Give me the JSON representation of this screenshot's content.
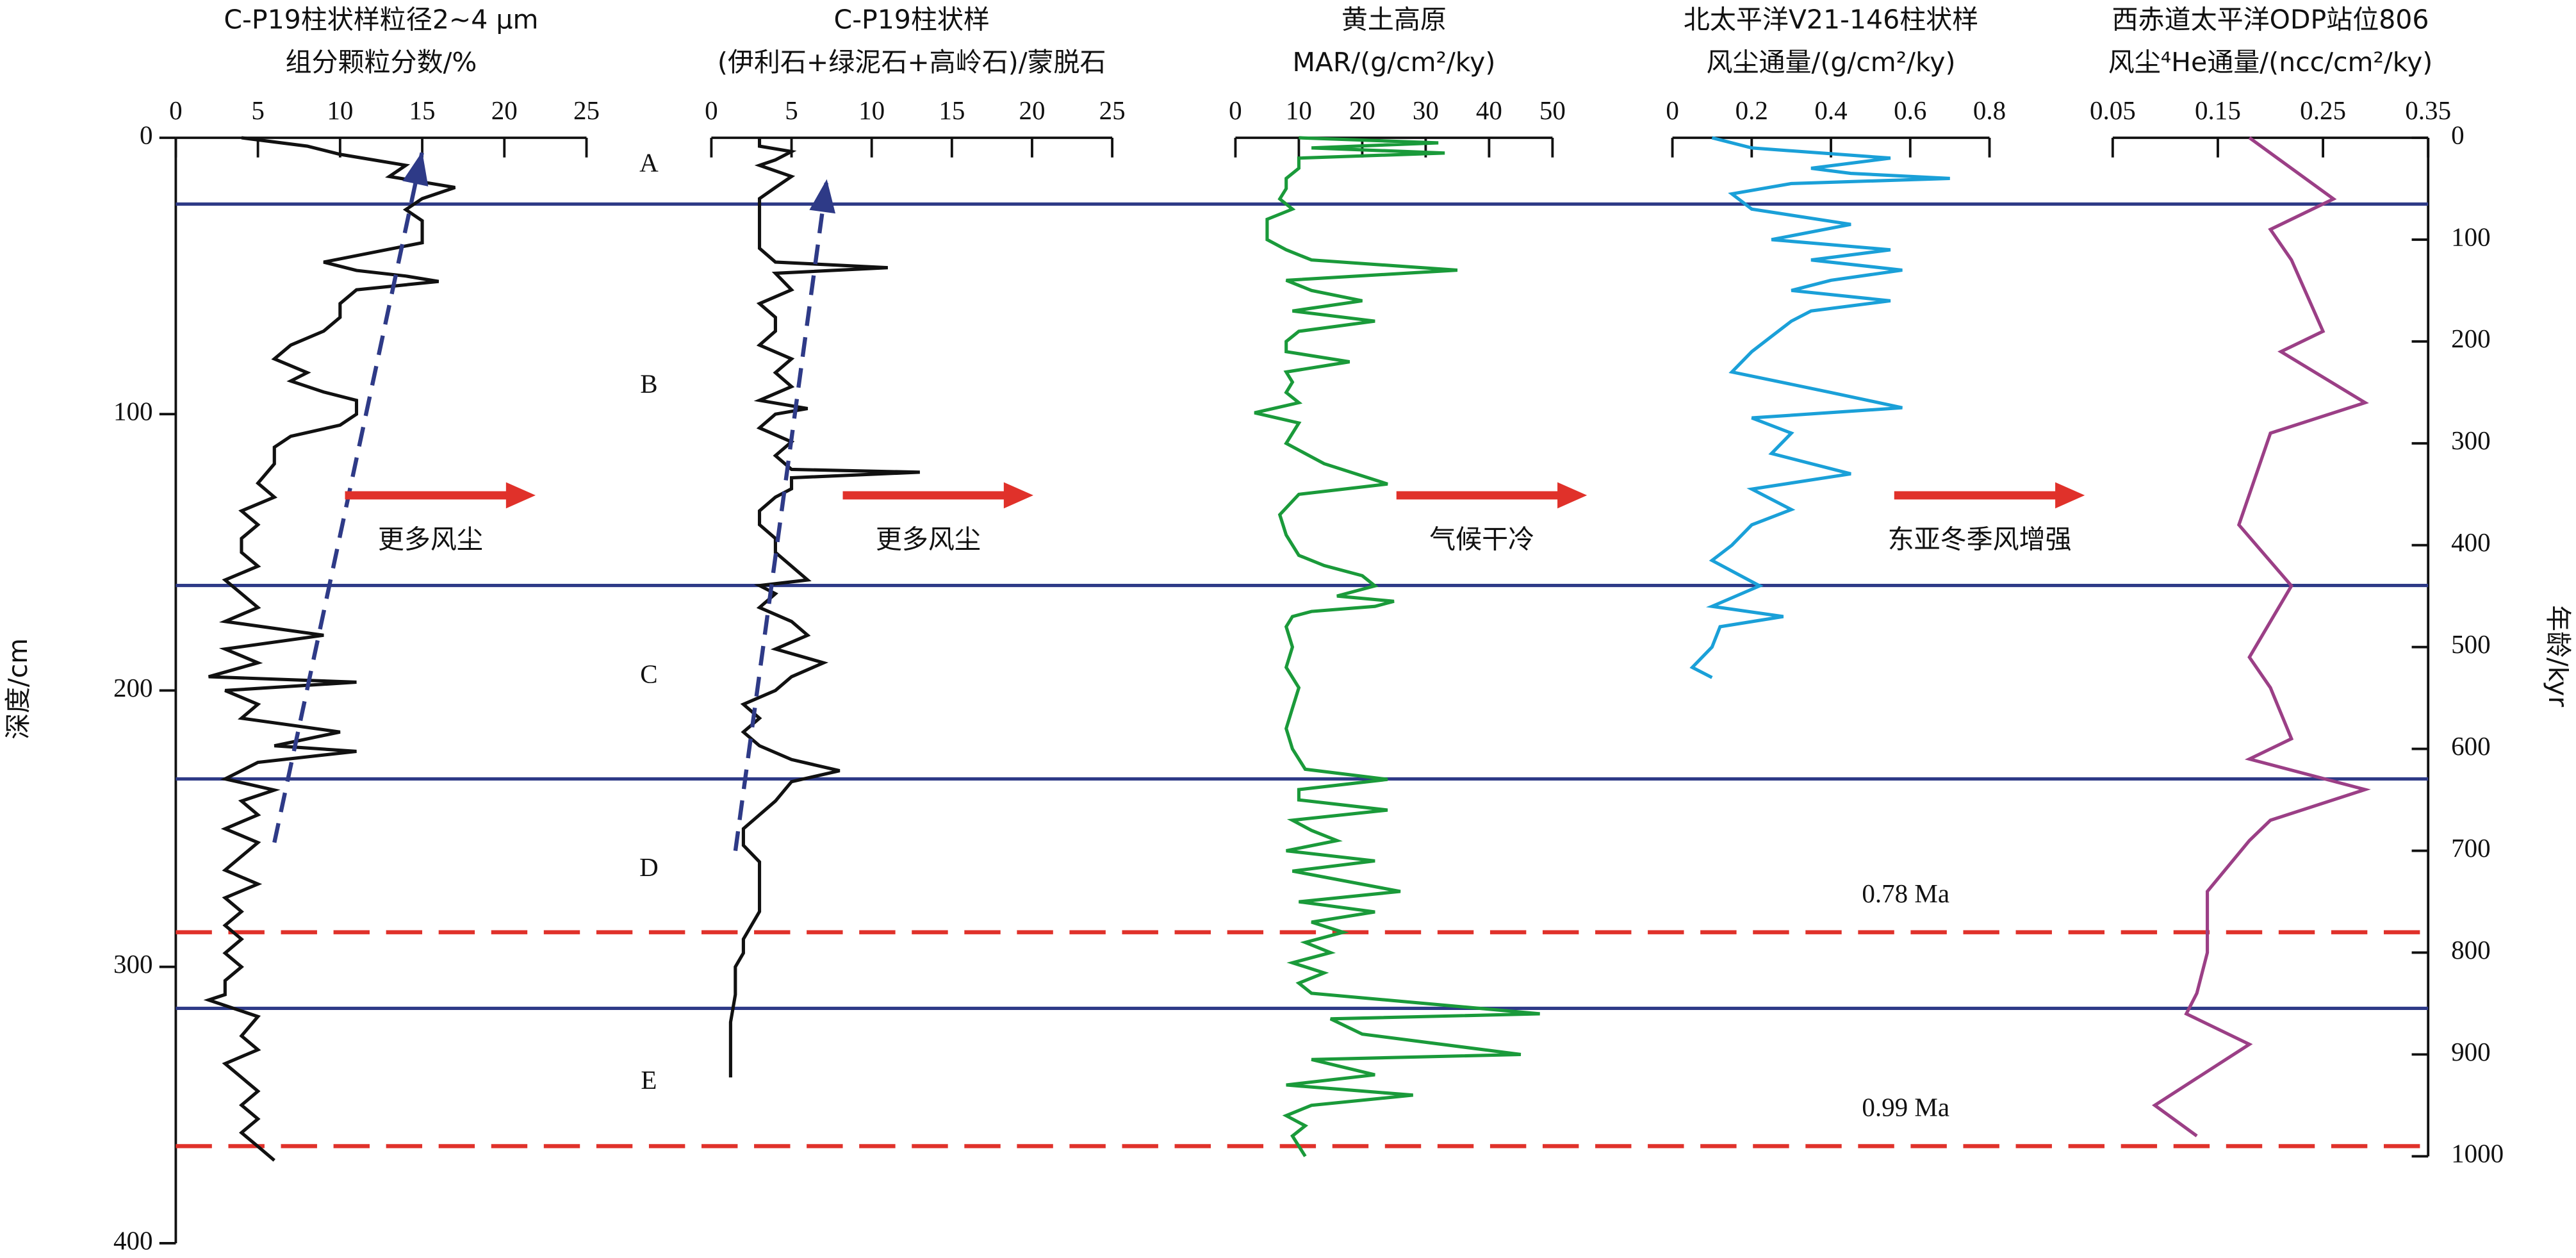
{
  "chart_data": [
    {
      "type": "line",
      "title": [
        "C-P19柱状样粒径2~4 μm",
        "组分颗粒分数/%"
      ],
      "xlim": [
        0,
        25
      ],
      "xticks": [
        0,
        5,
        10,
        15,
        20,
        25
      ],
      "ylim": [
        0,
        400
      ],
      "yticks": [
        0,
        100,
        200,
        300,
        400
      ],
      "y_label": "深度/cm",
      "annotation": "更多风尘",
      "series": [
        {
          "color": "#111111",
          "y": [
            0,
            3,
            6,
            10,
            14,
            18,
            22,
            26,
            30,
            38,
            45,
            48,
            50,
            52,
            55,
            60,
            65,
            70,
            75,
            80,
            85,
            88,
            92,
            95,
            100,
            104,
            108,
            112,
            118,
            125,
            130,
            135,
            140,
            145,
            150,
            155,
            160,
            165,
            170,
            175,
            180,
            185,
            190,
            195,
            197,
            200,
            205,
            210,
            215,
            220,
            222,
            226,
            232,
            236,
            240,
            245,
            250,
            255,
            260,
            265,
            270,
            275,
            280,
            285,
            290,
            295,
            300,
            305,
            310,
            312,
            318,
            325,
            330,
            335,
            340,
            345,
            350,
            355,
            360,
            365,
            370
          ],
          "values": [
            4,
            8,
            10,
            14,
            13,
            17,
            15,
            14,
            15,
            15,
            9,
            11,
            14,
            16,
            11,
            10,
            10,
            9,
            7,
            6,
            8,
            7,
            9,
            11,
            11,
            10,
            7,
            6,
            6,
            5,
            6,
            4,
            5,
            4,
            4,
            5,
            3,
            4,
            5,
            3,
            9,
            3,
            5,
            2,
            11,
            3,
            5,
            4,
            10,
            6,
            11,
            5,
            3,
            6,
            4,
            5,
            3,
            5,
            4,
            3,
            5,
            3,
            4,
            3,
            4,
            3,
            4,
            3,
            3,
            2,
            5,
            4,
            5,
            3,
            4,
            5,
            4,
            5,
            4,
            5,
            6
          ]
        }
      ],
      "trend": {
        "color": "#2e3a87",
        "y": [
          255,
          5
        ],
        "values": [
          6,
          15
        ]
      }
    },
    {
      "type": "line",
      "title": [
        "C-P19柱状样",
        "(伊利石+绿泥石+高岭石)/蒙脱石"
      ],
      "xlim": [
        0,
        25
      ],
      "xticks": [
        0,
        5,
        10,
        15,
        20,
        25
      ],
      "annotation": "更多风尘",
      "series": [
        {
          "color": "#111111",
          "y": [
            0,
            3,
            5,
            8,
            10,
            14,
            18,
            22,
            26,
            30,
            35,
            40,
            45,
            47,
            49,
            55,
            60,
            65,
            70,
            75,
            80,
            85,
            90,
            95,
            98,
            100,
            105,
            110,
            115,
            120,
            121,
            123,
            127,
            130,
            135,
            140,
            145,
            150,
            155,
            160,
            162,
            165,
            170,
            175,
            180,
            185,
            190,
            195,
            200,
            205,
            210,
            215,
            220,
            225,
            229,
            233,
            240,
            245,
            250,
            256,
            262,
            270,
            280,
            290,
            295,
            300,
            310,
            320,
            330,
            340
          ],
          "values": [
            3,
            3,
            5,
            4,
            3,
            5,
            4,
            3,
            3,
            3,
            3,
            3,
            4,
            11,
            4,
            5,
            3,
            4,
            4,
            3,
            5,
            4,
            5,
            3,
            6,
            4,
            3,
            5,
            4,
            5,
            13,
            5,
            5,
            4,
            3,
            3,
            4,
            4,
            5,
            6,
            3,
            4,
            3,
            5,
            6,
            4,
            7,
            5,
            4,
            2,
            3,
            2,
            3,
            5,
            8,
            5,
            4,
            3,
            2,
            2,
            3,
            3,
            3,
            2,
            2,
            1.5,
            1.5,
            1.2,
            1.2,
            1.2
          ]
        }
      ],
      "trend": {
        "color": "#2e3a87",
        "y": [
          258,
          15
        ],
        "values": [
          1.5,
          7.2
        ]
      }
    },
    {
      "type": "line",
      "title": [
        "黄土高原",
        "MAR/(g/cm²/ky)"
      ],
      "xlim": [
        0,
        50
      ],
      "xticks": [
        0,
        10,
        20,
        30,
        40,
        50
      ],
      "annotation": "气候干冷",
      "series": [
        {
          "color": "#1a9a3a",
          "axis": "y2",
          "y": [
            0,
            5,
            10,
            15,
            20,
            30,
            40,
            50,
            60,
            70,
            80,
            100,
            110,
            120,
            130,
            140,
            150,
            160,
            170,
            180,
            190,
            200,
            210,
            220,
            230,
            240,
            250,
            260,
            270,
            280,
            300,
            320,
            340,
            350,
            370,
            390,
            410,
            420,
            430,
            440,
            450,
            455,
            460,
            465,
            470,
            480,
            500,
            520,
            540,
            560,
            580,
            600,
            620,
            630,
            640,
            650,
            660,
            670,
            680,
            690,
            700,
            710,
            720,
            740,
            750,
            760,
            770,
            780,
            790,
            800,
            810,
            820,
            830,
            840,
            860,
            865,
            880,
            900,
            905,
            920,
            930,
            940,
            950,
            960,
            970,
            980,
            990,
            1000
          ],
          "values": [
            10,
            32,
            12,
            33,
            10,
            10,
            8,
            8,
            7,
            9,
            5,
            5,
            8,
            12,
            35,
            8,
            12,
            20,
            9,
            22,
            10,
            8,
            8,
            18,
            8,
            9,
            8,
            10,
            3,
            10,
            8,
            14,
            24,
            10,
            7,
            8,
            10,
            14,
            20,
            22,
            16,
            25,
            22,
            12,
            9,
            8,
            9,
            8,
            10,
            9,
            8,
            9,
            11,
            24,
            10,
            10,
            24,
            9,
            12,
            16,
            8,
            22,
            9,
            26,
            10,
            22,
            12,
            17,
            11,
            15,
            9,
            14,
            10,
            12,
            48,
            15,
            20,
            45,
            12,
            22,
            8,
            28,
            12,
            8,
            11,
            9,
            10,
            11
          ]
        }
      ]
    },
    {
      "type": "line",
      "title": [
        "北太平洋V21-146柱状样",
        "风尘通量/(g/cm²/ky)"
      ],
      "xlim": [
        0,
        0.8
      ],
      "xticks": [
        0,
        0.2,
        0.4,
        0.6,
        0.8
      ],
      "annotation": "东亚冬季风增强",
      "series": [
        {
          "color": "#1aa0d8",
          "axis": "y2",
          "y": [
            0,
            10,
            20,
            30,
            35,
            40,
            45,
            55,
            70,
            85,
            100,
            110,
            120,
            130,
            140,
            150,
            160,
            170,
            180,
            195,
            210,
            230,
            250,
            265,
            275,
            290,
            310,
            330,
            345,
            365,
            380,
            400,
            415,
            440,
            460,
            470,
            480,
            500,
            520,
            530
          ],
          "values": [
            0.1,
            0.2,
            0.55,
            0.35,
            0.45,
            0.7,
            0.3,
            0.15,
            0.2,
            0.45,
            0.25,
            0.55,
            0.35,
            0.58,
            0.4,
            0.3,
            0.55,
            0.35,
            0.3,
            0.25,
            0.2,
            0.15,
            0.4,
            0.58,
            0.2,
            0.3,
            0.25,
            0.45,
            0.2,
            0.3,
            0.2,
            0.15,
            0.1,
            0.22,
            0.1,
            0.28,
            0.12,
            0.1,
            0.05,
            0.1
          ]
        }
      ]
    },
    {
      "type": "line",
      "title": [
        "西赤道太平洋ODP站位806",
        "风尘⁴He通量/(ncc/cm²/ky)"
      ],
      "xlim": [
        0.05,
        0.35
      ],
      "xticks": [
        0.05,
        0.15,
        0.25,
        0.35
      ],
      "y2lim": [
        0,
        1000
      ],
      "y2ticks": [
        0,
        100,
        200,
        300,
        400,
        500,
        600,
        700,
        800,
        900,
        1000
      ],
      "y2_label": "年龄/kyr",
      "series": [
        {
          "color": "#9b3f86",
          "axis": "y2",
          "y": [
            0,
            60,
            90,
            120,
            190,
            210,
            260,
            290,
            380,
            440,
            510,
            540,
            590,
            610,
            640,
            670,
            690,
            740,
            800,
            840,
            860,
            890,
            950,
            980
          ],
          "values": [
            0.18,
            0.26,
            0.2,
            0.22,
            0.25,
            0.21,
            0.29,
            0.2,
            0.17,
            0.22,
            0.18,
            0.2,
            0.22,
            0.18,
            0.29,
            0.2,
            0.18,
            0.14,
            0.14,
            0.13,
            0.12,
            0.18,
            0.09,
            0.13
          ]
        }
      ]
    }
  ],
  "zones": {
    "color": "#2e3a87",
    "labels": [
      "A",
      "B",
      "C",
      "D",
      "E"
    ],
    "y": [
      10,
      90,
      195,
      265,
      342
    ]
  },
  "boundaries": {
    "color": "#2e3a87",
    "y": [
      24,
      162,
      232,
      315
    ]
  },
  "age_markers": {
    "color": "#e0312a",
    "labels": [
      "0.78 Ma",
      "0.99 Ma"
    ],
    "y2": [
      780,
      990
    ]
  },
  "arrow_color": "#e0312a"
}
